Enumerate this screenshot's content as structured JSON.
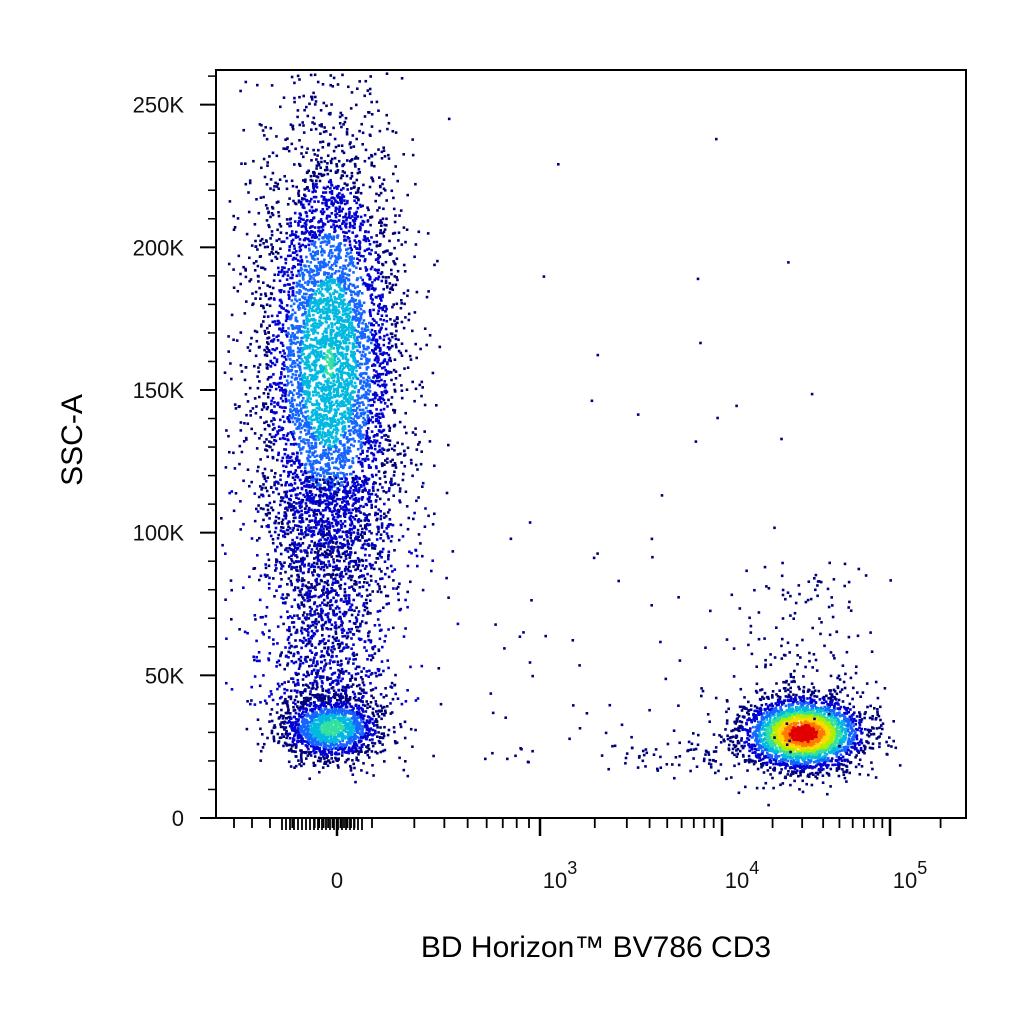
{
  "chart_data": {
    "type": "scatter",
    "subtype": "flow-cytometry-density-dot-plot",
    "xlabel": "BD Horizon™ BV786  CD3",
    "ylabel": "SSC-A",
    "x_scale": "biexponential",
    "y_scale": "linear",
    "ylim": [
      0,
      262144
    ],
    "y_ticks": [
      {
        "value": 0,
        "label": "0"
      },
      {
        "value": 50000,
        "label": "50K"
      },
      {
        "value": 100000,
        "label": "100K"
      },
      {
        "value": 150000,
        "label": "150K"
      },
      {
        "value": 200000,
        "label": "200K"
      },
      {
        "value": 250000,
        "label": "250K"
      }
    ],
    "x_ticks": [
      {
        "value": 0,
        "base": "0",
        "exp": ""
      },
      {
        "value": 1000,
        "base": "10",
        "exp": "3"
      },
      {
        "value": 10000,
        "base": "10",
        "exp": "4"
      },
      {
        "value": 100000,
        "base": "10",
        "exp": "5"
      }
    ],
    "color_scale": [
      "#00007a",
      "#0000d0",
      "#1565ff",
      "#00b8e0",
      "#33e0a0",
      "#a8f000",
      "#ffd800",
      "#ff7a00",
      "#e00000"
    ],
    "populations": [
      {
        "center_x": -40,
        "center_y": 160000,
        "spread_y": 40000,
        "count": 5200,
        "peak": 0.45
      },
      {
        "center_x": -30,
        "center_y": 32000,
        "spread_y": 6000,
        "count": 1500,
        "peak": 0.5
      },
      {
        "center_x": 30000,
        "center_y": 30000,
        "spread_y": 6500,
        "count": 3000,
        "peak": 1.0
      }
    ],
    "grid": false,
    "legend": "none"
  }
}
